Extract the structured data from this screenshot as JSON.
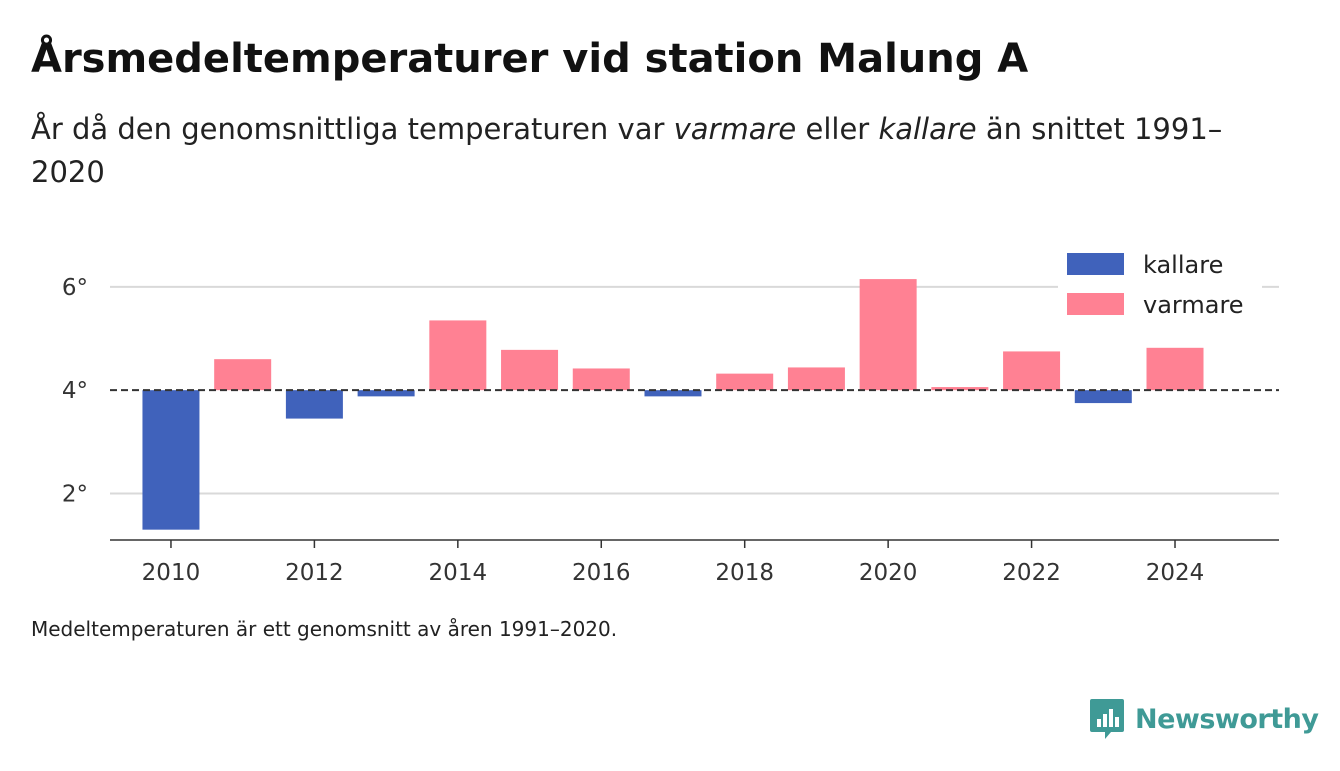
{
  "header": {
    "title": "Årsmedeltemperaturer vid station Malung A",
    "subtitle_before": "År då den genomsnittliga temperaturen var ",
    "subtitle_warm": "varmare",
    "subtitle_mid": " eller ",
    "subtitle_cold": "kallare",
    "subtitle_after": " än snittet 1991–2020"
  },
  "footer": {
    "note": "Medeltemperaturen är ett genomsnitt av åren 1991–2020.",
    "brand": "Newsworthy"
  },
  "colors": {
    "warmer": "#ff8193",
    "colder": "#4062bb",
    "brand": "#3f9a96",
    "grid": "#d9d9d9",
    "baseline": "#333333"
  },
  "chart_data": {
    "type": "bar",
    "x": [
      2010,
      2011,
      2012,
      2013,
      2014,
      2015,
      2016,
      2017,
      2018,
      2019,
      2020,
      2021,
      2022,
      2023,
      2024
    ],
    "values": [
      1.3,
      4.6,
      3.45,
      3.88,
      5.35,
      4.78,
      4.42,
      3.88,
      4.32,
      4.44,
      6.15,
      4.06,
      4.75,
      3.75,
      4.82
    ],
    "baseline": 4.0,
    "ylim": [
      1.1,
      7.1
    ],
    "yticks": [
      2,
      4,
      6
    ],
    "ytick_labels": [
      "2°",
      "4°",
      "6°"
    ],
    "xticks": [
      2010,
      2012,
      2014,
      2016,
      2018,
      2020,
      2022,
      2024
    ],
    "xlim": [
      2009.15,
      2025.45
    ],
    "legend": [
      {
        "name": "kallare",
        "color": "#4062bb"
      },
      {
        "name": "varmare",
        "color": "#ff8193"
      }
    ],
    "legend_position": "top-right",
    "grid": true
  }
}
